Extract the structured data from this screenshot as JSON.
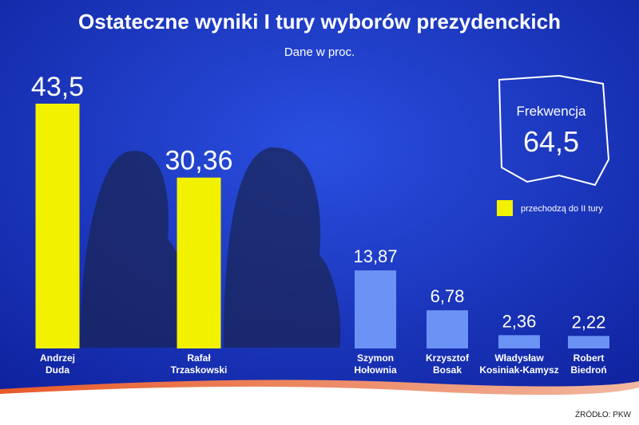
{
  "chart_data": {
    "type": "bar",
    "title": "Ostateczne wyniki I tury wyborów prezydenckich",
    "subtitle": "Dane w proc.",
    "categories": [
      "Andrzej Duda",
      "Rafał Trzaskowski",
      "Szymon Hołownia",
      "Krzysztof Bosak",
      "Władysław Kosiniak-Kamysz",
      "Robert Biedroń"
    ],
    "values": [
      43.5,
      30.36,
      13.87,
      6.78,
      2.36,
      2.22
    ],
    "value_labels": [
      "43,5",
      "30,36",
      "13,87",
      "6,78",
      "2,36",
      "2,22"
    ],
    "colors": [
      "#f2f200",
      "#f2f200",
      "#6a93f5",
      "#6a93f5",
      "#6a93f5",
      "#6a93f5"
    ],
    "legend": {
      "label": "przechodzą do II tury",
      "color": "#f2f200"
    },
    "turnout": {
      "label": "Frekwencja",
      "value": 64.5,
      "value_label": "64,5"
    },
    "source": "ŹRÓDŁO: PKW"
  }
}
